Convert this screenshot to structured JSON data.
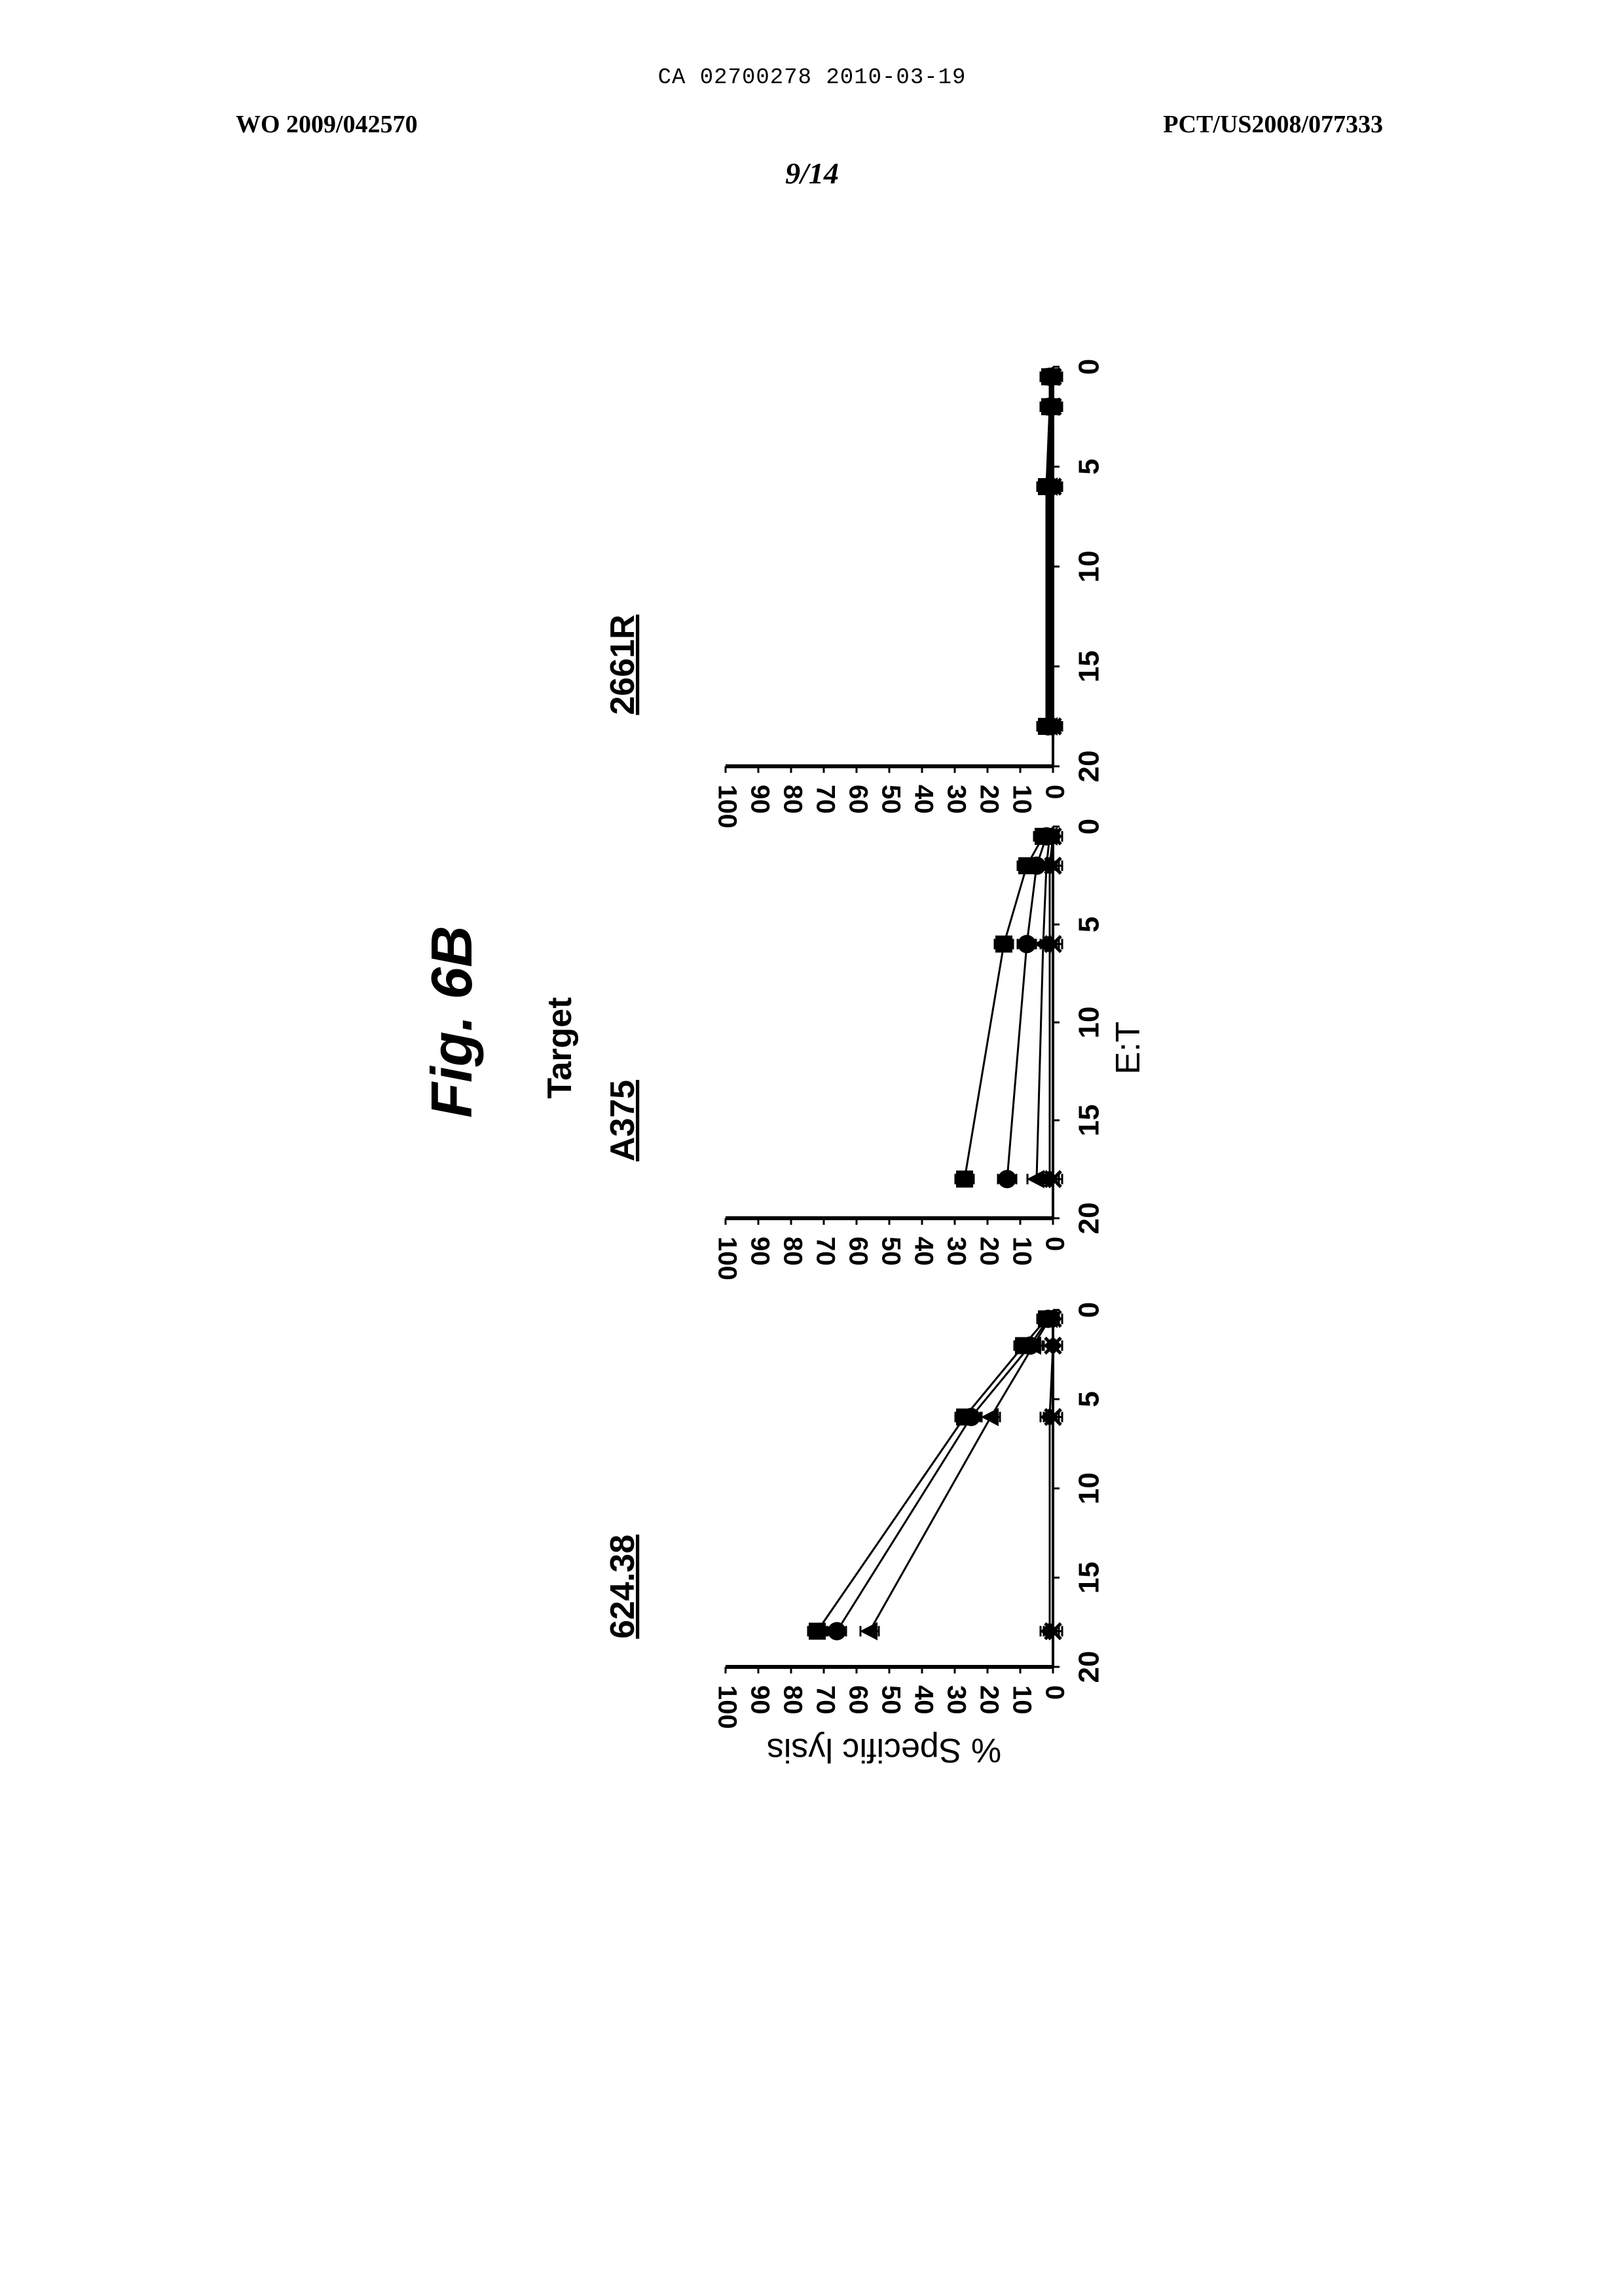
{
  "header": {
    "ca_line": "CA 02700278 2010-03-19",
    "wo_number": "WO 2009/042570",
    "pct_number": "PCT/US2008/077333",
    "page_number": "9/14"
  },
  "figure": {
    "title": "Fig. 6B",
    "group_title": "Target",
    "ylabel": "% Specific lysis",
    "xlabel": "E:T"
  },
  "chart_data": [
    {
      "type": "line",
      "title": "624.38",
      "xlabel": "E:T",
      "ylabel": "% Specific lysis",
      "xlim": [
        0,
        20
      ],
      "ylim": [
        0,
        100
      ],
      "x_ticks": [
        "20",
        "15",
        "10",
        "5",
        "0"
      ],
      "y_ticks": [
        "100",
        "90",
        "80",
        "70",
        "60",
        "50",
        "40",
        "30",
        "20",
        "10",
        "0"
      ],
      "x": [
        18,
        6,
        2,
        0.5
      ],
      "series": [
        {
          "name": "square",
          "marker": "square",
          "values": [
            72,
            27,
            9,
            2
          ]
        },
        {
          "name": "circle",
          "marker": "circle",
          "values": [
            66,
            25,
            7,
            1.5
          ]
        },
        {
          "name": "triangle",
          "marker": "triangle",
          "values": [
            56,
            19,
            6,
            1
          ]
        },
        {
          "name": "diamond",
          "marker": "diamond",
          "values": [
            1,
            1,
            0,
            0
          ]
        },
        {
          "name": "cross",
          "marker": "x",
          "values": [
            0,
            0,
            0,
            0
          ]
        }
      ]
    },
    {
      "type": "line",
      "title": "A375",
      "xlabel": "E:T",
      "ylabel": "% Specific lysis",
      "xlim": [
        0,
        20
      ],
      "ylim": [
        0,
        100
      ],
      "x_ticks": [
        "20",
        "15",
        "10",
        "5",
        "0"
      ],
      "y_ticks": [
        "100",
        "90",
        "80",
        "70",
        "60",
        "50",
        "40",
        "30",
        "20",
        "10",
        "0"
      ],
      "x": [
        18,
        6,
        2,
        0.5
      ],
      "series": [
        {
          "name": "square",
          "marker": "square",
          "values": [
            27,
            15,
            8,
            3
          ]
        },
        {
          "name": "circle",
          "marker": "circle",
          "values": [
            14,
            8,
            5,
            2
          ]
        },
        {
          "name": "triangle",
          "marker": "triangle",
          "values": [
            5,
            3,
            2,
            1
          ]
        },
        {
          "name": "diamond",
          "marker": "diamond",
          "values": [
            1,
            1,
            1,
            0
          ]
        },
        {
          "name": "cross",
          "marker": "x",
          "values": [
            0,
            0,
            0,
            0
          ]
        }
      ]
    },
    {
      "type": "line",
      "title": "2661R",
      "xlabel": "E:T",
      "ylabel": "% Specific lysis",
      "xlim": [
        0,
        20
      ],
      "ylim": [
        0,
        100
      ],
      "x_ticks": [
        "20",
        "15",
        "10",
        "5",
        "0"
      ],
      "y_ticks": [
        "100",
        "90",
        "80",
        "70",
        "60",
        "50",
        "40",
        "30",
        "20",
        "10",
        "0"
      ],
      "x": [
        18,
        6,
        2,
        0.5
      ],
      "series": [
        {
          "name": "square",
          "marker": "square",
          "values": [
            2,
            2,
            1,
            1
          ]
        },
        {
          "name": "circle",
          "marker": "circle",
          "values": [
            1.5,
            1.5,
            1,
            1
          ]
        },
        {
          "name": "triangle",
          "marker": "triangle",
          "values": [
            1,
            1,
            0.5,
            0.5
          ]
        },
        {
          "name": "diamond",
          "marker": "diamond",
          "values": [
            0.5,
            0.5,
            0.5,
            0
          ]
        },
        {
          "name": "cross",
          "marker": "x",
          "values": [
            0,
            0,
            0,
            0
          ]
        }
      ]
    }
  ]
}
